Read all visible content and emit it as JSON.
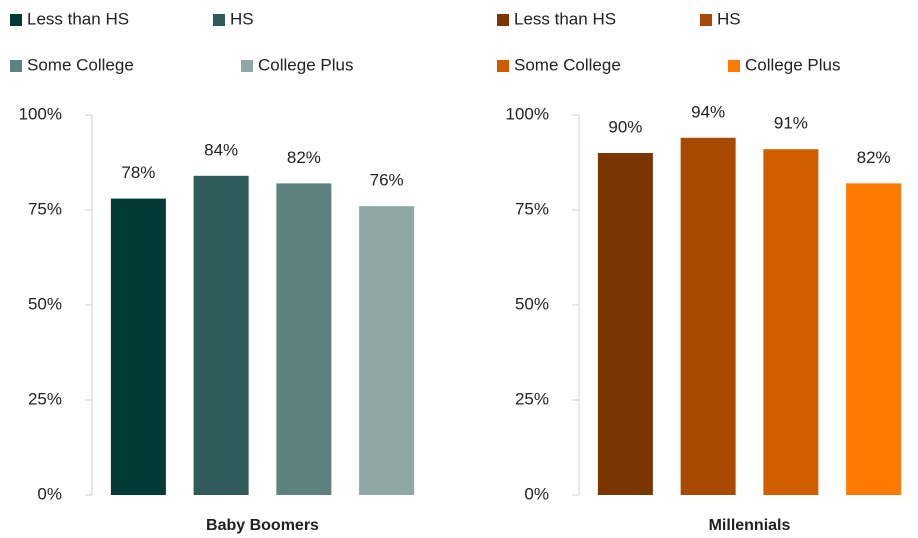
{
  "chart_data": [
    {
      "type": "bar",
      "xlabel": "Baby Boomers",
      "series": [
        {
          "name": "Less than HS",
          "color": "#023a36",
          "values": [
            78
          ],
          "value_labels": [
            "78%"
          ]
        },
        {
          "name": "HS",
          "color": "#2f5b5b",
          "values": [
            84
          ],
          "value_labels": [
            "84%"
          ]
        },
        {
          "name": "Some College",
          "color": "#5e8280",
          "values": [
            82
          ],
          "value_labels": [
            "82%"
          ]
        },
        {
          "name": "College Plus",
          "color": "#8fa8a7",
          "values": [
            76
          ],
          "value_labels": [
            "76%"
          ]
        }
      ],
      "ylim": [
        0,
        100
      ],
      "yticks": [
        {
          "value": 0,
          "label": "0%"
        },
        {
          "value": 25,
          "label": "25%"
        },
        {
          "value": 50,
          "label": "50%"
        },
        {
          "value": 75,
          "label": "75%"
        },
        {
          "value": 100,
          "label": "100%"
        }
      ],
      "legend": "top",
      "grid": false
    },
    {
      "type": "bar",
      "xlabel": "Millennials",
      "series": [
        {
          "name": "Less than HS",
          "color": "#7a3500",
          "values": [
            90
          ],
          "value_labels": [
            "90%"
          ]
        },
        {
          "name": "HS",
          "color": "#a84900",
          "values": [
            94
          ],
          "value_labels": [
            "94%"
          ]
        },
        {
          "name": "Some College",
          "color": "#d05e00",
          "values": [
            91
          ],
          "value_labels": [
            "91%"
          ]
        },
        {
          "name": "College Plus",
          "color": "#ff7a00",
          "values": [
            82
          ],
          "value_labels": [
            "82%"
          ]
        }
      ],
      "ylim": [
        0,
        100
      ],
      "yticks": [
        {
          "value": 0,
          "label": "0%"
        },
        {
          "value": 25,
          "label": "25%"
        },
        {
          "value": 50,
          "label": "50%"
        },
        {
          "value": 75,
          "label": "75%"
        },
        {
          "value": 100,
          "label": "100%"
        }
      ],
      "legend": "top",
      "grid": false
    }
  ]
}
